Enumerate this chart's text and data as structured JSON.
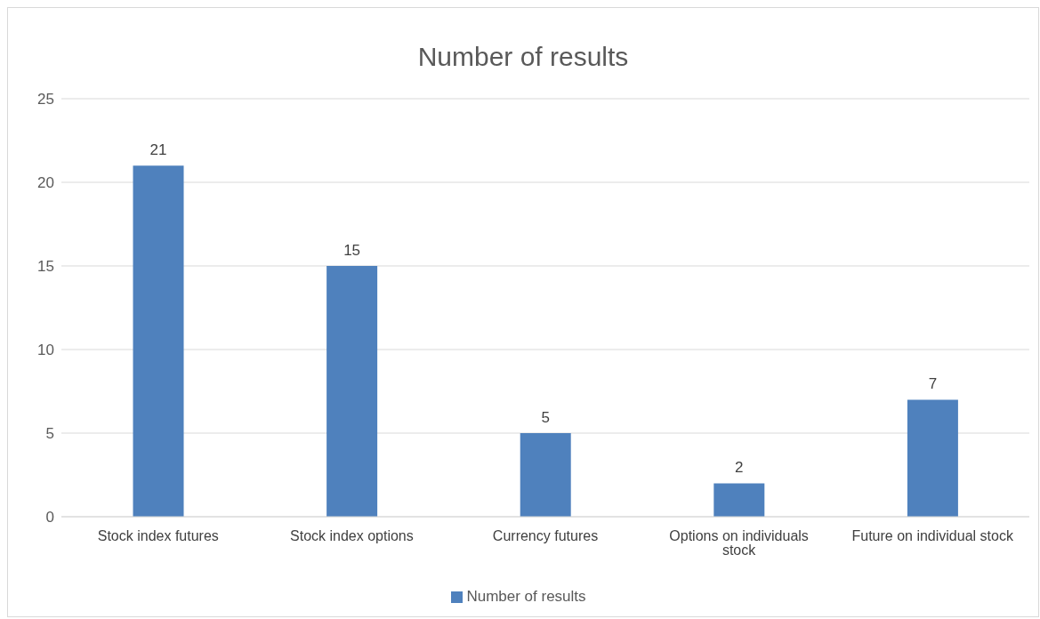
{
  "chart_data": {
    "type": "bar",
    "title": "Number of results",
    "categories": [
      "Stock index futures",
      "Stock index options",
      "Currency futures",
      "Options on individuals stock",
      "Future on individual stock"
    ],
    "series": [
      {
        "name": "Number of results",
        "color": "#4f81bd",
        "values": [
          21,
          15,
          5,
          2,
          7
        ]
      }
    ],
    "ylim": [
      0,
      25
    ],
    "yticks": [
      0,
      5,
      10,
      15,
      20,
      25
    ],
    "grid": "y",
    "legend": "bottom",
    "data_labels": true
  }
}
